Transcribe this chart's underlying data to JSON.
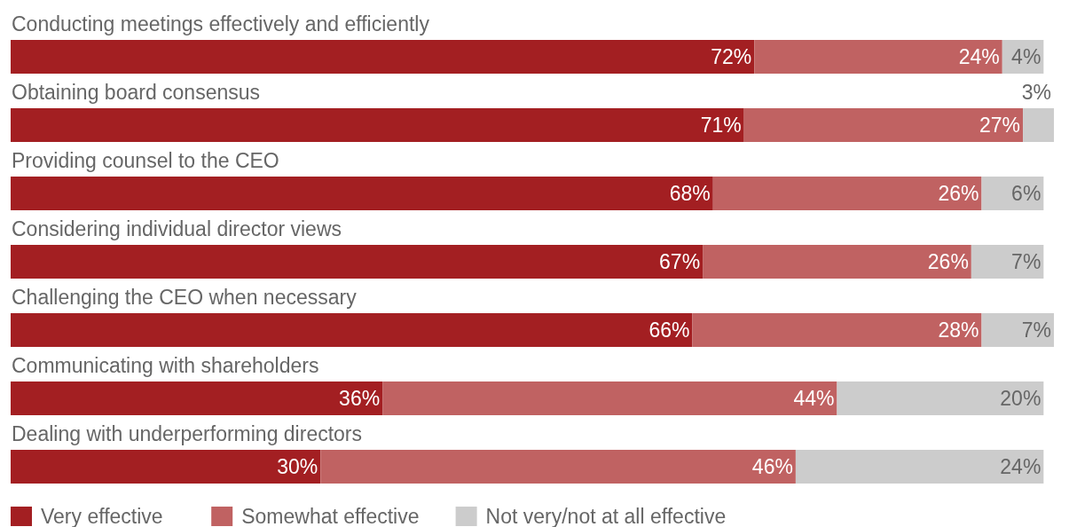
{
  "chart_data": {
    "type": "bar",
    "orientation": "horizontal",
    "stacked": true,
    "legend": "bottom",
    "categories": [
      "Conducting meetings effectively and efficiently",
      "Obtaining board consensus",
      "Providing counsel to the CEO",
      "Considering individual director views",
      "Challenging the CEO when necessary",
      "Communicating with shareholders",
      "Dealing with underperforming directors"
    ],
    "series": [
      {
        "name": "Very effective",
        "color": "#a31f22",
        "values": [
          72,
          71,
          68,
          67,
          66,
          36,
          30
        ],
        "value_labels": [
          "72%",
          "71%",
          "68%",
          "67%",
          "66%",
          "36%",
          "30%"
        ]
      },
      {
        "name": "Somewhat effective",
        "color": "#c06262",
        "values": [
          24,
          27,
          26,
          26,
          28,
          44,
          46
        ],
        "value_labels": [
          "24%",
          "27%",
          "26%",
          "26%",
          "28%",
          "44%",
          "46%"
        ]
      },
      {
        "name": "Not very/not at all effective",
        "color": "#cccccc",
        "values": [
          4,
          3,
          6,
          7,
          7,
          20,
          24
        ],
        "value_labels": [
          "4%",
          "3%",
          "6%",
          "7%",
          "7%",
          "20%",
          "24%"
        ]
      }
    ]
  }
}
